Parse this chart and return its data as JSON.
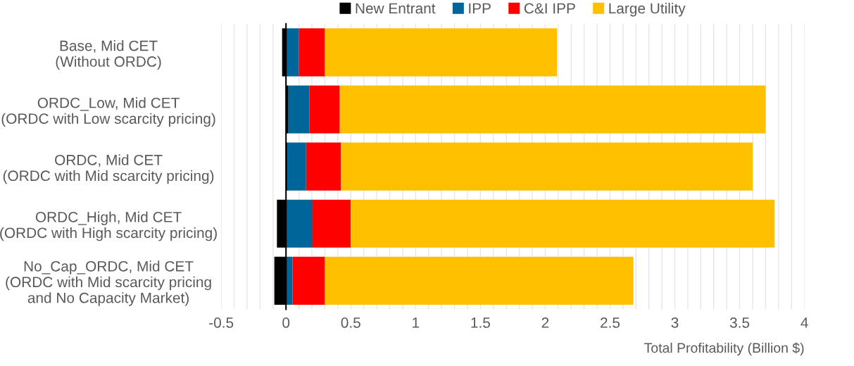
{
  "chart_data": {
    "type": "bar",
    "orientation": "horizontal",
    "stacked": true,
    "xlabel": "Total Profitability (Billion $)",
    "categories": [
      "Base, Mid CET\n(Without ORDC)",
      "ORDC_Low, Mid CET\n(ORDC with Low scarcity pricing)",
      "ORDC, Mid CET\n(ORDC with Mid scarcity pricing)",
      "ORDC_High, Mid CET\n(ORDC with High scarcity pricing)",
      "No_Cap_ORDC, Mid CET\n(ORDC with Mid scarcity pricing\nand No Capacity Market)"
    ],
    "series": [
      {
        "name": "New Entrant",
        "color": "#000000",
        "values": [
          -0.03,
          0.015,
          0.01,
          -0.07,
          -0.09
        ]
      },
      {
        "name": "IPP",
        "color": "#006699",
        "values": [
          0.1,
          0.165,
          0.145,
          0.205,
          0.05
        ]
      },
      {
        "name": "C&I IPP",
        "color": "#ff0000",
        "values": [
          0.2,
          0.235,
          0.27,
          0.295,
          0.25
        ]
      },
      {
        "name": "Large Utility",
        "color": "#ffc000",
        "values": [
          1.79,
          3.285,
          3.175,
          3.27,
          2.38
        ]
      }
    ],
    "xlim": [
      -0.5,
      4
    ],
    "xticks": [
      -0.5,
      {
        "value": -0.4,
        "label": null
      },
      {
        "value": -0.3,
        "label": null
      },
      {
        "value": -0.2,
        "label": null
      },
      {
        "value": -0.1,
        "label": null
      },
      0,
      {
        "value": 0.1,
        "label": null
      },
      {
        "value": 0.2,
        "label": null
      },
      {
        "value": 0.3,
        "label": null
      },
      {
        "value": 0.4,
        "label": null
      },
      0.5,
      {
        "value": 0.6,
        "label": null
      },
      {
        "value": 0.7,
        "label": null
      },
      {
        "value": 0.8,
        "label": null
      },
      {
        "value": 0.9,
        "label": null
      },
      1,
      {
        "value": 1.1,
        "label": null
      },
      {
        "value": 1.2,
        "label": null
      },
      {
        "value": 1.3,
        "label": null
      },
      {
        "value": 1.4,
        "label": null
      },
      1.5,
      {
        "value": 1.6,
        "label": null
      },
      {
        "value": 1.7,
        "label": null
      },
      {
        "value": 1.8,
        "label": null
      },
      {
        "value": 1.9,
        "label": null
      },
      2,
      {
        "value": 2.1,
        "label": null
      },
      {
        "value": 2.2,
        "label": null
      },
      {
        "value": 2.3,
        "label": null
      },
      {
        "value": 2.4,
        "label": null
      },
      2.5,
      {
        "value": 2.6,
        "label": null
      },
      {
        "value": 2.7,
        "label": null
      },
      {
        "value": 2.8,
        "label": null
      },
      {
        "value": 2.9,
        "label": null
      },
      3,
      {
        "value": 3.1,
        "label": null
      },
      {
        "value": 3.2,
        "label": null
      },
      {
        "value": 3.3,
        "label": null
      },
      {
        "value": 3.4,
        "label": null
      },
      3.5,
      {
        "value": 3.6,
        "label": null
      },
      {
        "value": 3.7,
        "label": null
      },
      {
        "value": 3.8,
        "label": null
      },
      {
        "value": 3.9,
        "label": null
      },
      4
    ],
    "grid": "x",
    "legend": "top"
  }
}
